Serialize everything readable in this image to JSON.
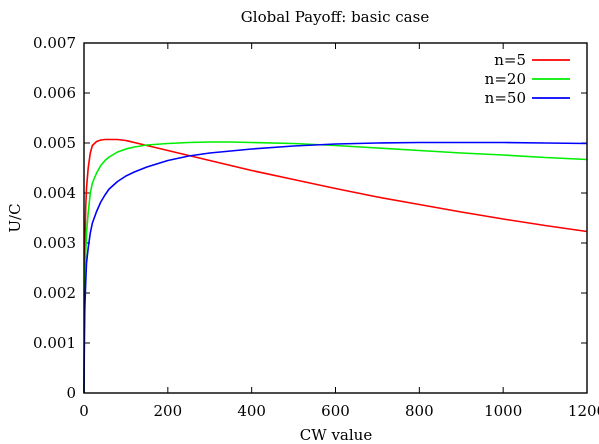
{
  "chart_data": {
    "type": "line",
    "title": "Global Payoff: basic case",
    "xlabel": "CW value",
    "ylabel": "U/C",
    "xlim": [
      0,
      1200
    ],
    "ylim": [
      0,
      0.007
    ],
    "x_ticks": [
      0,
      200,
      400,
      600,
      800,
      1000,
      1200
    ],
    "x_tick_labels": [
      "0",
      "200",
      "400",
      "600",
      "800",
      "1000",
      "1200"
    ],
    "y_ticks": [
      0,
      0.001,
      0.002,
      0.003,
      0.004,
      0.005,
      0.006,
      0.007
    ],
    "y_tick_labels": [
      "0",
      "0.001",
      "0.002",
      "0.003",
      "0.004",
      "0.005",
      "0.006",
      "0.007"
    ],
    "grid": false,
    "legend_position": "top-right",
    "series": [
      {
        "name": "n=5",
        "color": "#ff0000",
        "x": [
          1,
          2,
          4,
          6,
          10,
          15,
          20,
          30,
          40,
          50,
          60,
          70,
          80,
          100,
          120,
          150,
          200,
          250,
          300,
          400,
          500,
          600,
          700,
          800,
          900,
          1000,
          1100,
          1200
        ],
        "y": [
          0.0017,
          0.0028,
          0.0037,
          0.0041,
          0.0045,
          0.0048,
          0.00495,
          0.00503,
          0.00506,
          0.00507,
          0.00507,
          0.00507,
          0.00507,
          0.00505,
          0.00501,
          0.00495,
          0.00485,
          0.00475,
          0.00465,
          0.00445,
          0.00427,
          0.00409,
          0.00392,
          0.00377,
          0.00362,
          0.00348,
          0.00335,
          0.00323
        ]
      },
      {
        "name": "n=20",
        "color": "#00ee00",
        "x": [
          1,
          2,
          4,
          6,
          10,
          15,
          20,
          30,
          40,
          50,
          60,
          80,
          100,
          120,
          150,
          200,
          250,
          300,
          350,
          400,
          500,
          600,
          700,
          800,
          900,
          1000,
          1100,
          1200
        ],
        "y": [
          0.0015,
          0.0021,
          0.0028,
          0.0032,
          0.0036,
          0.004,
          0.0042,
          0.0044,
          0.00455,
          0.00465,
          0.00472,
          0.00482,
          0.00488,
          0.00492,
          0.00496,
          0.00499,
          0.00501,
          0.00502,
          0.00502,
          0.00501,
          0.00499,
          0.00495,
          0.0049,
          0.00485,
          0.0048,
          0.00476,
          0.00471,
          0.00467
        ]
      },
      {
        "name": "n=50",
        "color": "#0000ff",
        "x": [
          1,
          2,
          4,
          6,
          10,
          15,
          20,
          30,
          40,
          50,
          60,
          80,
          100,
          120,
          150,
          200,
          250,
          300,
          400,
          500,
          600,
          700,
          800,
          900,
          1000,
          1100,
          1200
        ],
        "y": [
          0.0012,
          0.0017,
          0.0022,
          0.0026,
          0.0029,
          0.0032,
          0.0034,
          0.00363,
          0.00382,
          0.00396,
          0.00408,
          0.00423,
          0.00434,
          0.00442,
          0.00452,
          0.00465,
          0.00474,
          0.0048,
          0.00488,
          0.00494,
          0.00498,
          0.005,
          0.00501,
          0.00501,
          0.00501,
          0.005,
          0.00499
        ]
      }
    ]
  }
}
